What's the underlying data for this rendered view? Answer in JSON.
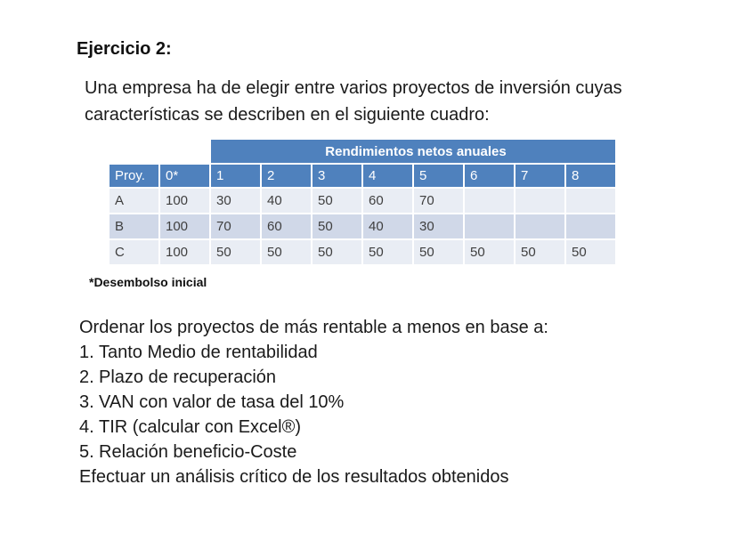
{
  "page": {
    "background": "#ffffff"
  },
  "title": "Ejercicio 2:",
  "intro": {
    "lines": [
      "Una empresa ha de elegir entre varios proyectos de inversión cuyas",
      "características se describen en el siguiente cuadro:"
    ]
  },
  "table": {
    "merged_header": "Rendimientos netos anuales",
    "columns": [
      "Proy.",
      "0*",
      "1",
      "2",
      "3",
      "4",
      "5",
      "6",
      "7",
      "8"
    ],
    "rows": [
      {
        "name": "A",
        "values": [
          "100",
          "30",
          "40",
          "50",
          "60",
          "70",
          "",
          "",
          ""
        ]
      },
      {
        "name": "B",
        "values": [
          "100",
          "70",
          "60",
          "50",
          "40",
          "30",
          "",
          "",
          ""
        ]
      },
      {
        "name": "C",
        "values": [
          "100",
          "50",
          "50",
          "50",
          "50",
          "50",
          "50",
          "50",
          "50"
        ]
      }
    ],
    "colors": {
      "header_bg": "#4f81bd",
      "header_text": "#ffffff",
      "band_light": "#e9edf4",
      "band_dark": "#d0d8e8",
      "body_text": "#3f3f3f"
    }
  },
  "footnote": "*Desembolso inicial",
  "task": {
    "intro": "Ordenar los proyectos de más rentable a menos en base a:",
    "items": [
      {
        "number": "1.",
        "text": "Tanto Medio de rentabilidad"
      },
      {
        "number": "2.",
        "text": "Plazo de recuperación"
      },
      {
        "number": "3.",
        "text": "VAN con valor de tasa del 10%"
      },
      {
        "number": "4.",
        "text": "TIR (calcular con Excel®)"
      },
      {
        "number": "5.",
        "text": "Relación beneficio-Coste"
      }
    ],
    "outro": "Efectuar un análisis crítico de los resultados obtenidos"
  }
}
